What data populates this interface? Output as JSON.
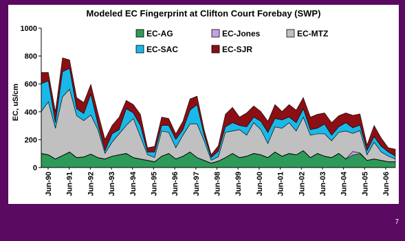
{
  "slide": {
    "number": "7",
    "background": "#5a0a60"
  },
  "chart_data": {
    "type": "area",
    "stacked": true,
    "title": "Modeled EC Fingerprint at Clifton Court Forebay (SWP)",
    "ylabel": "EC, uS/cm",
    "xlabel": "",
    "ylim": [
      0,
      1000
    ],
    "yticks": [
      0,
      200,
      400,
      600,
      800,
      1000
    ],
    "xticks": [
      "Jun-90",
      "Jun-91",
      "Jun-92",
      "Jun-93",
      "Jun-94",
      "Jun-95",
      "Jun-96",
      "Jun-97",
      "Jun-98",
      "Jun-99",
      "Jun-00",
      "Jun-01",
      "Jun-02",
      "Jun-03",
      "Jun-04",
      "Jun-05",
      "Jun-06"
    ],
    "grid": false,
    "legend_position": "top",
    "x": [
      "Jan-90",
      "Jun-90",
      "Oct-90",
      "Jan-91",
      "Jun-91",
      "Oct-91",
      "Jan-92",
      "Jun-92",
      "Oct-92",
      "Jan-93",
      "Jun-93",
      "Oct-93",
      "Jan-94",
      "Jun-94",
      "Oct-94",
      "Jan-95",
      "Jun-95",
      "Oct-95",
      "Jan-96",
      "Jun-96",
      "Oct-96",
      "Jan-97",
      "Jun-97",
      "Oct-97",
      "Jan-98",
      "Jun-98",
      "Oct-98",
      "Jan-99",
      "Jun-99",
      "Oct-99",
      "Jan-00",
      "Jun-00",
      "Oct-00",
      "Jan-01",
      "Jun-01",
      "Oct-01",
      "Jan-02",
      "Jun-02",
      "Oct-02",
      "Jan-03",
      "Jun-03",
      "Oct-03",
      "Jan-04",
      "Jun-04",
      "Oct-04",
      "Jan-05",
      "Jun-05",
      "Oct-05",
      "Jan-06",
      "Jun-06",
      "Sep-06"
    ],
    "series": [
      {
        "name": "EC-AG",
        "color": "#2e9a5a",
        "values": [
          100,
          90,
          60,
          85,
          110,
          70,
          75,
          95,
          70,
          60,
          80,
          90,
          100,
          70,
          60,
          50,
          40,
          80,
          100,
          60,
          80,
          110,
          70,
          50,
          30,
          45,
          70,
          100,
          70,
          80,
          100,
          90,
          70,
          110,
          80,
          100,
          90,
          120,
          70,
          100,
          80,
          70,
          100,
          60,
          90,
          100,
          50,
          60,
          50,
          40,
          40
        ]
      },
      {
        "name": "EC-Jones",
        "color": "#c8a0e8",
        "values": [
          2,
          2,
          2,
          2,
          2,
          2,
          2,
          2,
          2,
          2,
          2,
          2,
          2,
          2,
          2,
          2,
          2,
          2,
          2,
          2,
          2,
          2,
          2,
          2,
          2,
          2,
          2,
          2,
          2,
          2,
          2,
          2,
          2,
          2,
          2,
          2,
          2,
          2,
          2,
          2,
          2,
          2,
          2,
          2,
          25,
          5,
          2,
          2,
          2,
          2,
          2
        ]
      },
      {
        "name": "EC-MTZ",
        "color": "#c0c0c0",
        "values": [
          300,
          380,
          220,
          420,
          450,
          300,
          260,
          280,
          200,
          40,
          100,
          150,
          200,
          280,
          160,
          40,
          30,
          180,
          150,
          80,
          150,
          200,
          240,
          140,
          20,
          30,
          180,
          160,
          200,
          150,
          220,
          180,
          100,
          180,
          200,
          220,
          170,
          240,
          160,
          140,
          160,
          120,
          150,
          200,
          130,
          160,
          40,
          120,
          60,
          40,
          20
        ]
      },
      {
        "name": "EC-SAC",
        "color": "#1ab8e8",
        "values": [
          200,
          150,
          40,
          180,
          150,
          50,
          50,
          150,
          40,
          20,
          60,
          30,
          120,
          40,
          80,
          20,
          40,
          40,
          50,
          60,
          40,
          100,
          140,
          40,
          20,
          40,
          40,
          60,
          30,
          60,
          40,
          60,
          80,
          60,
          60,
          40,
          60,
          60,
          40,
          40,
          70,
          40,
          40,
          60,
          40,
          40,
          30,
          40,
          40,
          30,
          20
        ]
      },
      {
        "name": "EC-SJR",
        "color": "#8b0f14",
        "values": [
          80,
          60,
          80,
          100,
          60,
          80,
          80,
          70,
          80,
          80,
          60,
          90,
          60,
          60,
          80,
          30,
          40,
          60,
          50,
          40,
          60,
          80,
          60,
          40,
          20,
          40,
          90,
          110,
          60,
          100,
          80,
          70,
          80,
          100,
          60,
          90,
          90,
          80,
          90,
          100,
          80,
          90,
          80,
          70,
          90,
          80,
          40,
          80,
          60,
          30,
          50
        ]
      }
    ]
  }
}
